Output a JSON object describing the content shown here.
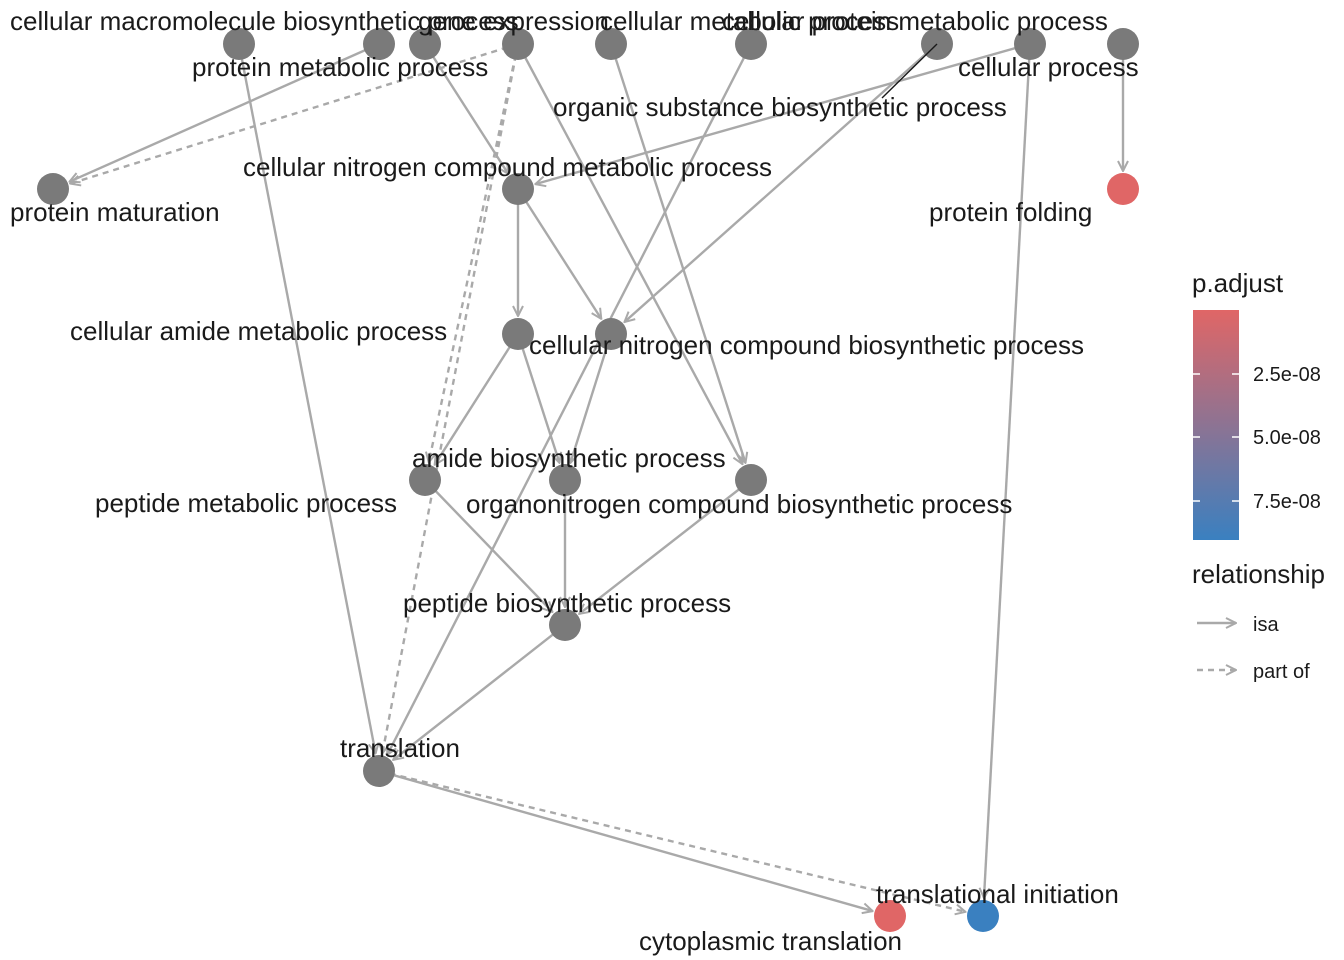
{
  "diagram": {
    "type": "directed-acyclic-graph",
    "node_color_default": "#7a7a7a",
    "edge_color": "#a9a9a9",
    "nodes": [
      {
        "id": "cmbp",
        "label": "cellular macromolecule biosynthetic process",
        "color": "#7a7a7a"
      },
      {
        "id": "ge",
        "label": "gene expression",
        "color": "#7a7a7a"
      },
      {
        "id": "pmp",
        "label": "protein metabolic process",
        "color": "#7a7a7a"
      },
      {
        "id": "cmp",
        "label": "cellular metabolic process",
        "color": "#7a7a7a"
      },
      {
        "id": "osbp",
        "label": "organic substance biosynthetic process",
        "color": "#7a7a7a"
      },
      {
        "id": "cpmp",
        "label": "cellular protein metabolic process",
        "color": "#7a7a7a"
      },
      {
        "id": "cp",
        "label": "cellular process",
        "color": "#7a7a7a"
      },
      {
        "id": "orgsub",
        "label": "",
        "color": "#7a7a7a"
      },
      {
        "id": "cbp",
        "label": "",
        "color": "#7a7a7a"
      },
      {
        "id": "pm",
        "label": "protein maturation",
        "color": "#7a7a7a"
      },
      {
        "id": "cncmp",
        "label": "cellular nitrogen compound metabolic process",
        "color": "#7a7a7a"
      },
      {
        "id": "pf",
        "label": "protein folding",
        "color": "#e06666"
      },
      {
        "id": "camp",
        "label": "cellular amide metabolic process",
        "color": "#7a7a7a"
      },
      {
        "id": "cncbp",
        "label": "cellular nitrogen compound biosynthetic process",
        "color": "#7a7a7a"
      },
      {
        "id": "pepmp",
        "label": "peptide metabolic process",
        "color": "#7a7a7a"
      },
      {
        "id": "abp",
        "label": "amide biosynthetic process",
        "color": "#7a7a7a"
      },
      {
        "id": "oncbp",
        "label": "organonitrogen compound biosynthetic process",
        "color": "#7a7a7a"
      },
      {
        "id": "pbp",
        "label": "peptide biosynthetic process",
        "color": "#7a7a7a"
      },
      {
        "id": "tr",
        "label": "translation",
        "color": "#7a7a7a"
      },
      {
        "id": "ct",
        "label": "cytoplasmic translation",
        "color": "#e06666"
      },
      {
        "id": "ti",
        "label": "translational initiation",
        "color": "#3a80c0"
      }
    ],
    "edges": [
      {
        "from": "cmbp",
        "to": "tr",
        "relationship": "isa"
      },
      {
        "from": "pmp",
        "to": "cncmp",
        "relationship": "isa"
      },
      {
        "from": "ge",
        "to": "pm",
        "relationship": "isa"
      },
      {
        "from": "cmp",
        "to": "pm",
        "relationship": "part of"
      },
      {
        "from": "cmp",
        "to": "pepmp",
        "relationship": "part of"
      },
      {
        "from": "cmp",
        "to": "tr",
        "relationship": "part of"
      },
      {
        "from": "cmp",
        "to": "oncbp",
        "relationship": "isa"
      },
      {
        "from": "orgsub",
        "to": "cncbp",
        "relationship": "isa"
      },
      {
        "from": "cbp",
        "to": "cncmp",
        "relationship": "isa"
      },
      {
        "from": "cbp",
        "to": "ti",
        "relationship": "isa"
      },
      {
        "from": "osbp",
        "to": "oncbp",
        "relationship": "isa"
      },
      {
        "from": "cpmp",
        "to": "tr",
        "relationship": "isa"
      },
      {
        "from": "cp",
        "to": "pf",
        "relationship": "isa"
      },
      {
        "from": "cncmp",
        "to": "camp",
        "relationship": "isa"
      },
      {
        "from": "cncmp",
        "to": "cncbp",
        "relationship": "isa"
      },
      {
        "from": "camp",
        "to": "pepmp",
        "relationship": "isa"
      },
      {
        "from": "camp",
        "to": "abp",
        "relationship": "isa"
      },
      {
        "from": "cncbp",
        "to": "abp",
        "relationship": "isa"
      },
      {
        "from": "pepmp",
        "to": "pbp",
        "relationship": "isa"
      },
      {
        "from": "abp",
        "to": "pbp",
        "relationship": "isa"
      },
      {
        "from": "oncbp",
        "to": "pbp",
        "relationship": "isa"
      },
      {
        "from": "pbp",
        "to": "tr",
        "relationship": "isa"
      },
      {
        "from": "tr",
        "to": "ct",
        "relationship": "isa"
      },
      {
        "from": "tr",
        "to": "ti",
        "relationship": "part of"
      }
    ]
  },
  "legend": {
    "color_title": "p.adjust",
    "gradient_top": "#e06666",
    "gradient_bottom": "#3a80c0",
    "ticks": [
      "2.5e-08",
      "5.0e-08",
      "7.5e-08"
    ],
    "relationship_title": "relationship",
    "relationships": [
      {
        "label": "isa",
        "style": "solid"
      },
      {
        "label": "part of",
        "style": "dashed"
      }
    ]
  }
}
